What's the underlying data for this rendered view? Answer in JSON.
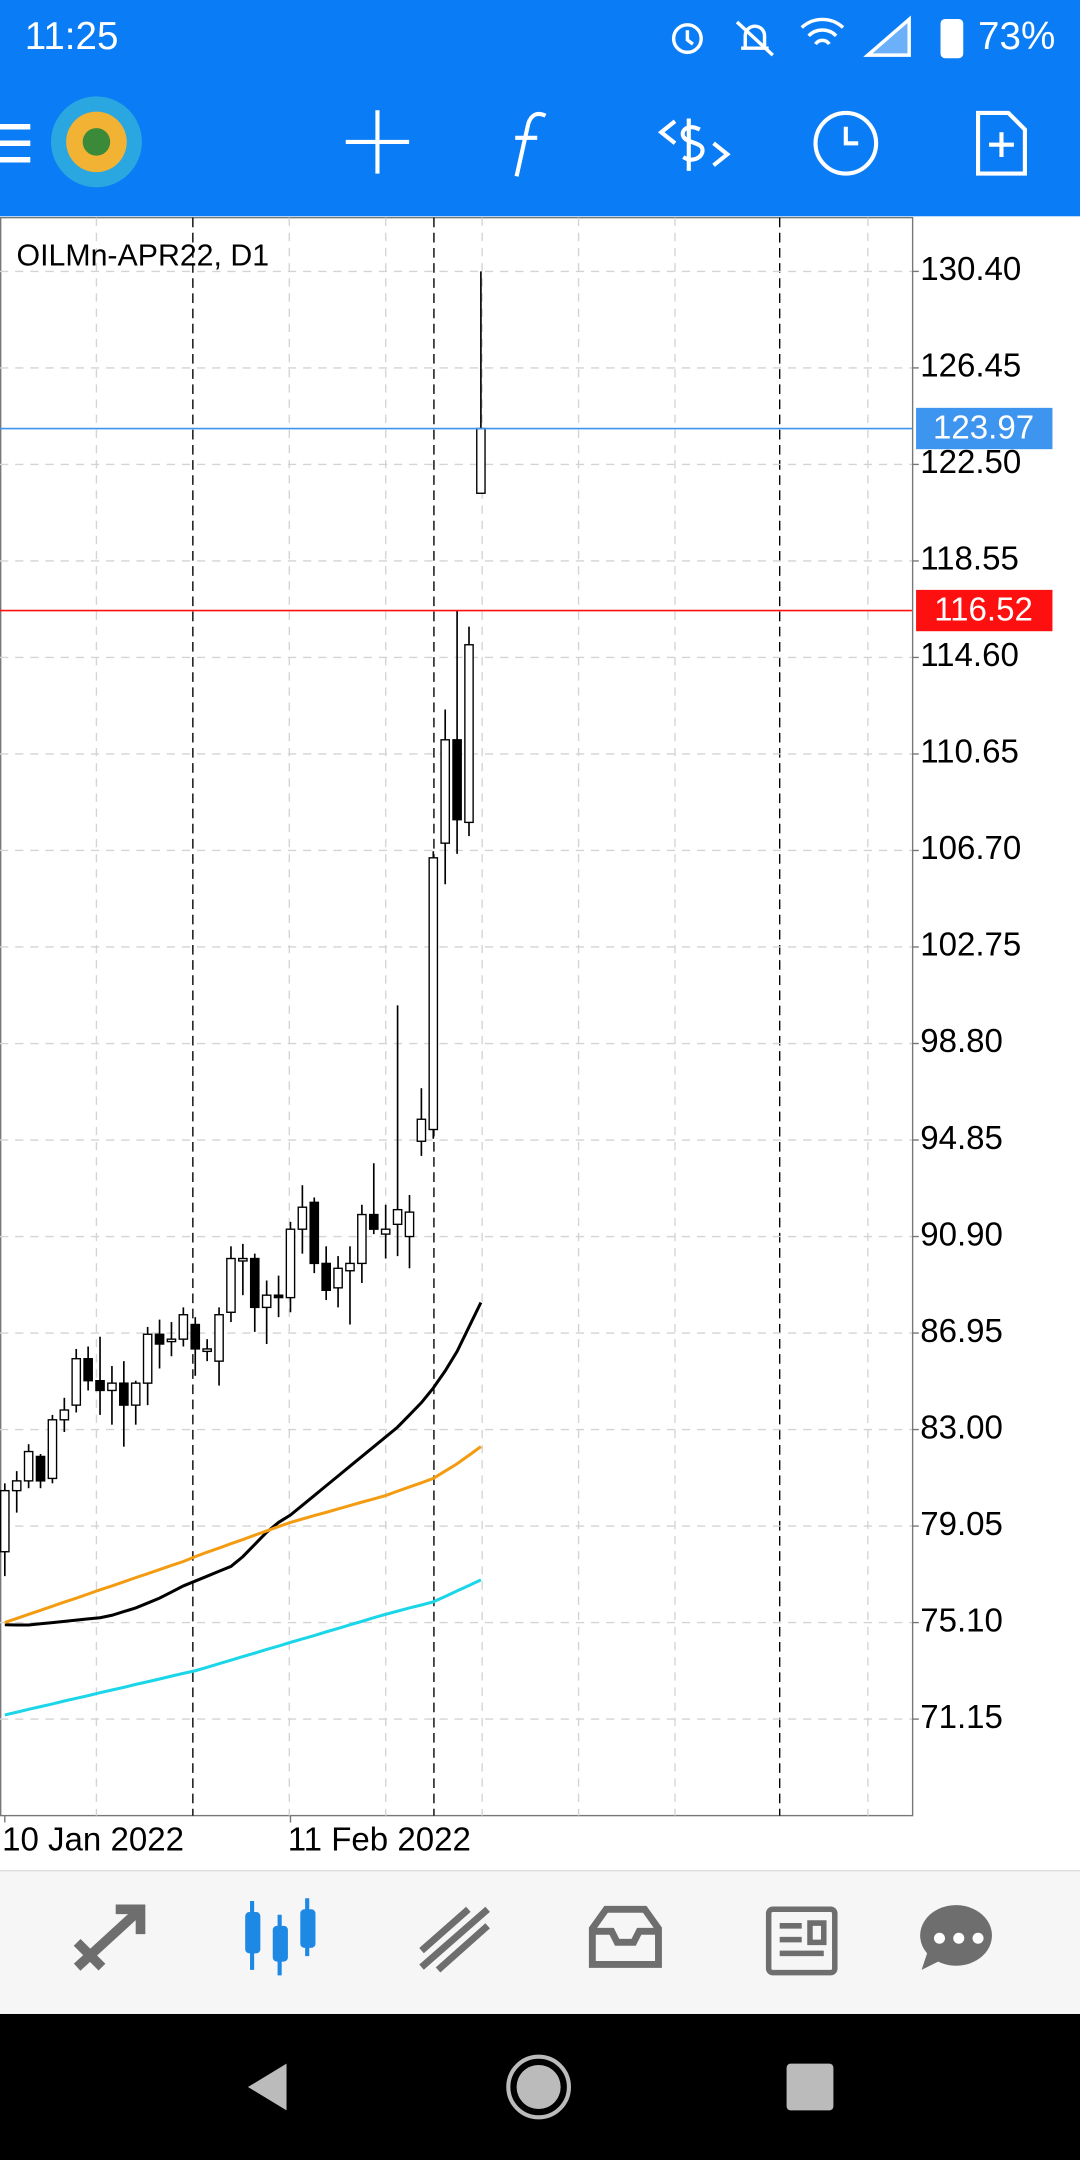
{
  "status_bar": {
    "time": "11:25",
    "battery": "73%"
  },
  "chart_data": {
    "type": "candlestick",
    "title": "OILMn-APR22, D1",
    "categories": [
      "10 Jan 2022",
      null,
      null,
      null,
      null,
      null,
      null,
      null,
      null,
      null,
      null,
      null,
      null,
      null,
      null,
      null,
      null,
      null,
      null,
      null,
      null,
      null,
      null,
      null,
      "11 Feb 2022",
      null,
      null,
      null,
      null,
      null,
      null,
      null,
      null,
      null,
      null,
      null,
      null,
      null,
      null,
      null,
      null
    ],
    "ohlc": [
      [
        78.0,
        80.8,
        77.0,
        80.5
      ],
      [
        80.5,
        81.3,
        79.6,
        80.9
      ],
      [
        80.9,
        82.4,
        80.6,
        82.1
      ],
      [
        81.9,
        82.0,
        80.6,
        80.9
      ],
      [
        81.0,
        83.6,
        80.8,
        83.4
      ],
      [
        83.4,
        84.3,
        82.9,
        83.8
      ],
      [
        84.0,
        86.3,
        83.7,
        85.9
      ],
      [
        85.9,
        86.4,
        84.6,
        85.0
      ],
      [
        85.0,
        86.8,
        83.6,
        84.6
      ],
      [
        84.6,
        85.6,
        83.2,
        84.9
      ],
      [
        84.9,
        85.8,
        82.3,
        84.0
      ],
      [
        84.0,
        85.0,
        83.2,
        84.9
      ],
      [
        84.9,
        87.2,
        84.0,
        86.9
      ],
      [
        86.9,
        87.5,
        85.5,
        86.5
      ],
      [
        86.6,
        87.4,
        86.0,
        86.7
      ],
      [
        86.7,
        88.0,
        86.4,
        87.7
      ],
      [
        87.3,
        87.6,
        85.2,
        86.3
      ],
      [
        86.2,
        86.7,
        85.8,
        86.3
      ],
      [
        85.8,
        88.0,
        84.8,
        87.7
      ],
      [
        87.8,
        90.5,
        87.4,
        90.0
      ],
      [
        89.9,
        90.6,
        88.5,
        90.0
      ],
      [
        90.0,
        90.2,
        87.0,
        88.0
      ],
      [
        88.0,
        89.1,
        86.5,
        88.5
      ],
      [
        88.5,
        89.3,
        87.6,
        88.4
      ],
      [
        88.4,
        91.5,
        87.8,
        91.2
      ],
      [
        91.2,
        93.0,
        90.2,
        92.1
      ],
      [
        92.3,
        92.5,
        89.4,
        89.8
      ],
      [
        89.8,
        90.5,
        88.3,
        88.7
      ],
      [
        88.8,
        90.1,
        88.0,
        89.6
      ],
      [
        89.5,
        90.5,
        87.3,
        89.8
      ],
      [
        89.8,
        92.2,
        89.0,
        91.8
      ],
      [
        91.8,
        93.9,
        91.0,
        91.2
      ],
      [
        91.0,
        92.2,
        90.0,
        91.2
      ],
      [
        91.4,
        100.36,
        90.1,
        92.0
      ],
      [
        90.9,
        92.6,
        89.6,
        91.9
      ],
      [
        94.8,
        96.97,
        94.2,
        95.7
      ],
      [
        95.28,
        106.67,
        94.9,
        106.4
      ],
      [
        107.0,
        112.47,
        105.32,
        111.23
      ],
      [
        111.23,
        116.52,
        106.56,
        107.96
      ],
      [
        107.85,
        115.86,
        107.29,
        115.12
      ],
      [
        121.32,
        130.4,
        121.32,
        123.97
      ]
    ],
    "series": [
      {
        "color": "#000000",
        "values": [
          75.01,
          75.0,
          75.0,
          75.05,
          75.1,
          75.15,
          75.2,
          75.25,
          75.3,
          75.4,
          75.55,
          75.7,
          75.9,
          76.1,
          76.35,
          76.6,
          76.8,
          77.0,
          77.2,
          77.4,
          77.8,
          78.3,
          78.8,
          79.2,
          79.5,
          79.9,
          80.3,
          80.7,
          81.1,
          81.5,
          81.9,
          82.3,
          82.7,
          83.1,
          83.6,
          84.1,
          84.7,
          85.4,
          86.2,
          87.2,
          88.2
        ]
      },
      {
        "color": "#f39c12",
        "values": [
          75.1,
          75.27,
          75.44,
          75.6,
          75.77,
          75.94,
          76.1,
          76.27,
          76.44,
          76.6,
          76.77,
          76.94,
          77.1,
          77.27,
          77.44,
          77.6,
          77.8,
          77.98,
          78.15,
          78.33,
          78.5,
          78.68,
          78.85,
          79.03,
          79.2,
          79.34,
          79.48,
          79.61,
          79.75,
          79.89,
          80.03,
          80.16,
          80.3,
          80.48,
          80.65,
          80.82,
          81.0,
          81.3,
          81.6,
          81.95,
          82.3
        ]
      },
      {
        "color": "#1ad6e8",
        "values": [
          71.32,
          71.43,
          71.55,
          71.66,
          71.77,
          71.89,
          72.0,
          72.11,
          72.23,
          72.34,
          72.45,
          72.57,
          72.68,
          72.79,
          72.91,
          73.02,
          73.13,
          73.27,
          73.42,
          73.56,
          73.71,
          73.85,
          74.0,
          74.14,
          74.29,
          74.43,
          74.57,
          74.72,
          74.86,
          75.01,
          75.15,
          75.3,
          75.44,
          75.57,
          75.7,
          75.82,
          75.95,
          76.17,
          76.4,
          76.62,
          76.85
        ]
      }
    ],
    "price_lines": [
      {
        "value": 123.97,
        "color": "#3d95f0"
      },
      {
        "value": 116.52,
        "color": "#ff1010"
      }
    ],
    "ylim": [
      67.2,
      132.6
    ],
    "yticks": [
      {
        "value": 130.4,
        "label": "130.40"
      },
      126.45,
      {
        "value": 122.5,
        "label": "122.50"
      },
      118.55,
      {
        "value": 114.6,
        "label": "114.60"
      },
      110.65,
      {
        "value": 106.7,
        "label": "106.70"
      },
      102.75,
      {
        "value": 98.8,
        "label": "98.80"
      },
      94.85,
      {
        "value": 90.9,
        "label": "90.90"
      },
      86.95,
      {
        "value": 83.0,
        "label": "83.00"
      },
      79.05,
      {
        "value": 75.1,
        "label": "75.10"
      },
      71.15
    ],
    "grid": true
  }
}
